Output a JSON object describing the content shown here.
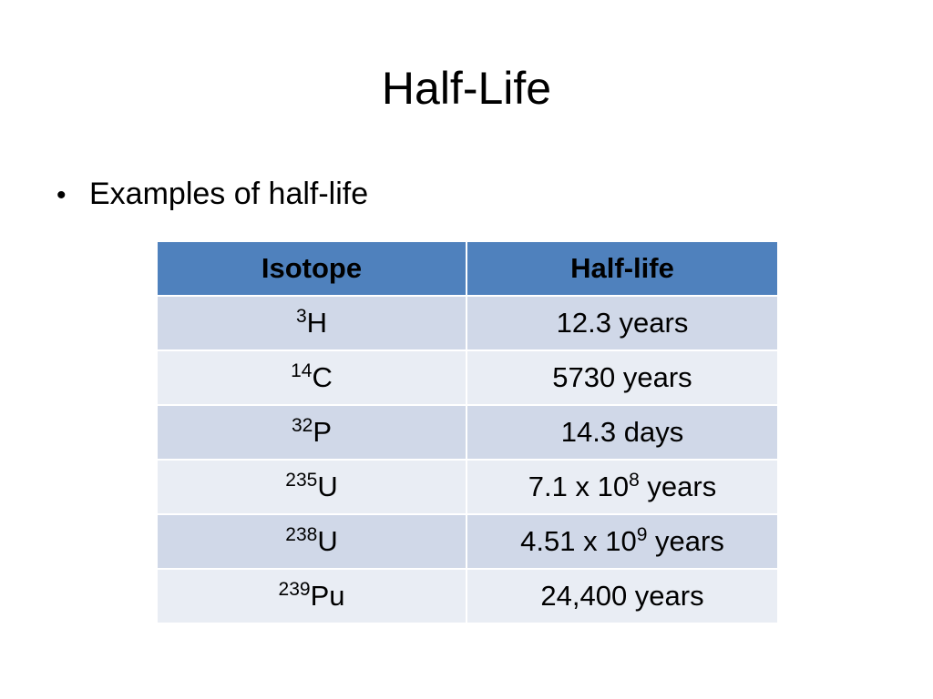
{
  "slide": {
    "title": "Half-Life",
    "bullet_glyph": "•",
    "bullet": "Examples of half-life"
  },
  "table": {
    "headers": [
      "Isotope",
      "Half-life"
    ],
    "rows": [
      {
        "mass": "3",
        "symbol": "H",
        "value": "12.3 years",
        "exp": "",
        "value_suffix": ""
      },
      {
        "mass": "14",
        "symbol": "C",
        "value": "5730 years",
        "exp": "",
        "value_suffix": ""
      },
      {
        "mass": "32",
        "symbol": "P",
        "value": "14.3 days",
        "exp": "",
        "value_suffix": ""
      },
      {
        "mass": "235",
        "symbol": "U",
        "value": "7.1 x 10",
        "exp": "8",
        "value_suffix": " years"
      },
      {
        "mass": "238",
        "symbol": "U",
        "value": "4.51 x 10",
        "exp": "9",
        "value_suffix": " years"
      },
      {
        "mass": "239",
        "symbol": "Pu",
        "value": "24,400 years",
        "exp": "",
        "value_suffix": ""
      }
    ]
  },
  "colors": {
    "header_bg": "#4f81bd",
    "row_dark": "#d0d8e8",
    "row_light": "#e9edf4"
  }
}
